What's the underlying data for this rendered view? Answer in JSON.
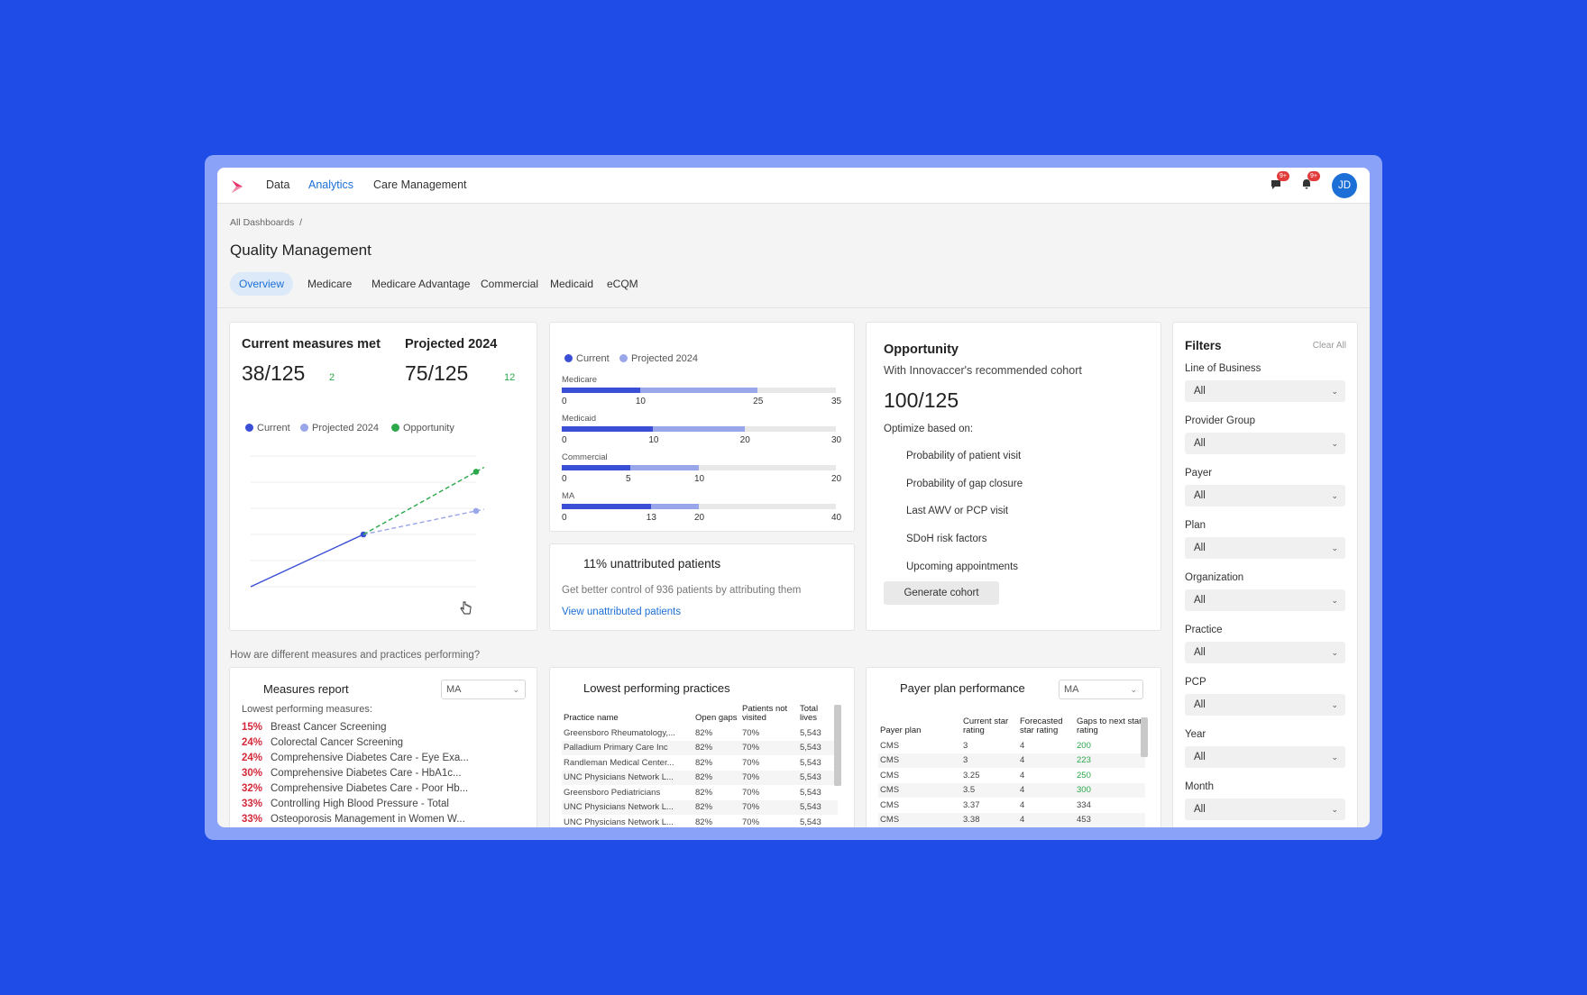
{
  "nav": {
    "items": [
      "Data",
      "Analytics",
      "Care Management"
    ],
    "active": "Analytics",
    "message_badge": "9+",
    "bell_badge": "9+",
    "avatar_initials": "JD"
  },
  "breadcrumb": "All Dashboards",
  "breadcrumb_sep": "/",
  "page_title": "Quality Management",
  "tabs": [
    "Overview",
    "Medicare",
    "Medicare Advantage",
    "Commercial",
    "Medicaid",
    "eCQM"
  ],
  "colors": {
    "current": "#3a4fd6",
    "projected": "#9aa6ea",
    "opportunity": "#2aa84a",
    "accent": "#1c6fd6",
    "negative": "#d3293a"
  },
  "measures_card": {
    "current_title": "Current measures met",
    "current_value": "38/125",
    "current_delta": "2",
    "projected_title": "Projected 2024",
    "projected_value": "75/125",
    "projected_delta": "12",
    "legend": [
      "Current",
      "Projected 2024",
      "Opportunity"
    ]
  },
  "chart_data": [
    {
      "type": "line",
      "title": "",
      "series": [
        {
          "name": "Current",
          "x": [
            0,
            1
          ],
          "values": [
            0,
            1
          ]
        },
        {
          "name": "Projected 2024",
          "x": [
            1,
            2
          ],
          "values": [
            1,
            1.45
          ]
        },
        {
          "name": "Opportunity",
          "x": [
            1,
            2
          ],
          "values": [
            1,
            2.2
          ]
        }
      ],
      "xlabel": "",
      "ylabel": "",
      "ylim": [
        0,
        2.5
      ],
      "grid": true
    },
    {
      "type": "bar",
      "orientation": "horizontal",
      "legend": [
        "Current",
        "Projected 2024"
      ],
      "series": [
        {
          "name": "Medicare",
          "current": 10,
          "projected": 25,
          "max": 35,
          "ticks": [
            "0",
            "10",
            "25",
            "35"
          ]
        },
        {
          "name": "Medicaid",
          "current": 10,
          "projected": 20,
          "max": 30,
          "ticks": [
            "0",
            "10",
            "20",
            "30"
          ]
        },
        {
          "name": "Commercial",
          "current": 5,
          "projected": 10,
          "max": 20,
          "ticks": [
            "0",
            "5",
            "10",
            "20"
          ]
        },
        {
          "name": "MA",
          "current": 13,
          "projected": 20,
          "max": 40,
          "ticks": [
            "0",
            "13",
            "20",
            "40"
          ]
        }
      ]
    }
  ],
  "unattributed": {
    "title": "11% unattributed patients",
    "text": "Get better control of 936 patients by attributing them",
    "link": "View unattributed patients"
  },
  "opportunity": {
    "title": "Opportunity",
    "subtitle": "With Innovaccer's recommended cohort",
    "value": "100/125",
    "optimize_label": "Optimize based on:",
    "items": [
      "Probability of patient visit",
      "Probability of gap closure",
      "Last AWV or PCP visit",
      "SDoH risk factors",
      "Upcoming appointments"
    ],
    "button": "Generate cohort"
  },
  "filters": {
    "title": "Filters",
    "clear": "Clear All",
    "items": [
      {
        "label": "Line of Business",
        "value": "All"
      },
      {
        "label": "Provider Group",
        "value": "All"
      },
      {
        "label": "Payer",
        "value": "All"
      },
      {
        "label": "Plan",
        "value": "All"
      },
      {
        "label": "Organization",
        "value": "All"
      },
      {
        "label": "Practice",
        "value": "All"
      },
      {
        "label": "PCP",
        "value": "All"
      },
      {
        "label": "Year",
        "value": "All"
      },
      {
        "label": "Month",
        "value": "All"
      }
    ]
  },
  "section_question": "How are different measures and practices performing?",
  "measures_report": {
    "title": "Measures report",
    "select": "MA",
    "subtitle": "Lowest performing measures:",
    "rows": [
      {
        "pct": "15%",
        "name": "Breast Cancer Screening"
      },
      {
        "pct": "24%",
        "name": "Colorectal Cancer Screening"
      },
      {
        "pct": "24%",
        "name": "Comprehensive Diabetes Care - Eye Exa..."
      },
      {
        "pct": "30%",
        "name": "Comprehensive Diabetes Care - HbA1c..."
      },
      {
        "pct": "32%",
        "name": "Comprehensive Diabetes Care - Poor Hb..."
      },
      {
        "pct": "33%",
        "name": "Controlling High Blood Pressure - Total"
      },
      {
        "pct": "33%",
        "name": "Osteoporosis Management in Women W..."
      }
    ]
  },
  "practices": {
    "title": "Lowest performing practices",
    "headers": [
      "Practice name",
      "Open gaps",
      "Patients not visited",
      "Total lives"
    ],
    "rows": [
      [
        "Greensboro Rheumatology,...",
        "82%",
        "70%",
        "5,543"
      ],
      [
        "Palladium Primary Care Inc",
        "82%",
        "70%",
        "5,543"
      ],
      [
        "Randleman Medical Center...",
        "82%",
        "70%",
        "5,543"
      ],
      [
        "UNC Physicians Network L...",
        "82%",
        "70%",
        "5,543"
      ],
      [
        "Greensboro Pediatricians",
        "82%",
        "70%",
        "5,543"
      ],
      [
        "UNC Physicians Network L...",
        "82%",
        "70%",
        "5,543"
      ],
      [
        "UNC Physicians Network L...",
        "82%",
        "70%",
        "5,543"
      ]
    ]
  },
  "payer": {
    "title": "Payer plan performance",
    "select": "MA",
    "headers": [
      "Payer plan",
      "Current star rating",
      "Forecasted star rating",
      "Gaps to next star rating"
    ],
    "rows": [
      [
        "CMS",
        "3",
        "4",
        "200"
      ],
      [
        "CMS",
        "3",
        "4",
        "223"
      ],
      [
        "CMS",
        "3.25",
        "4",
        "250"
      ],
      [
        "CMS",
        "3.5",
        "4",
        "300"
      ],
      [
        "CMS",
        "3.37",
        "4",
        "334"
      ],
      [
        "CMS",
        "3.38",
        "4",
        "453"
      ]
    ]
  }
}
